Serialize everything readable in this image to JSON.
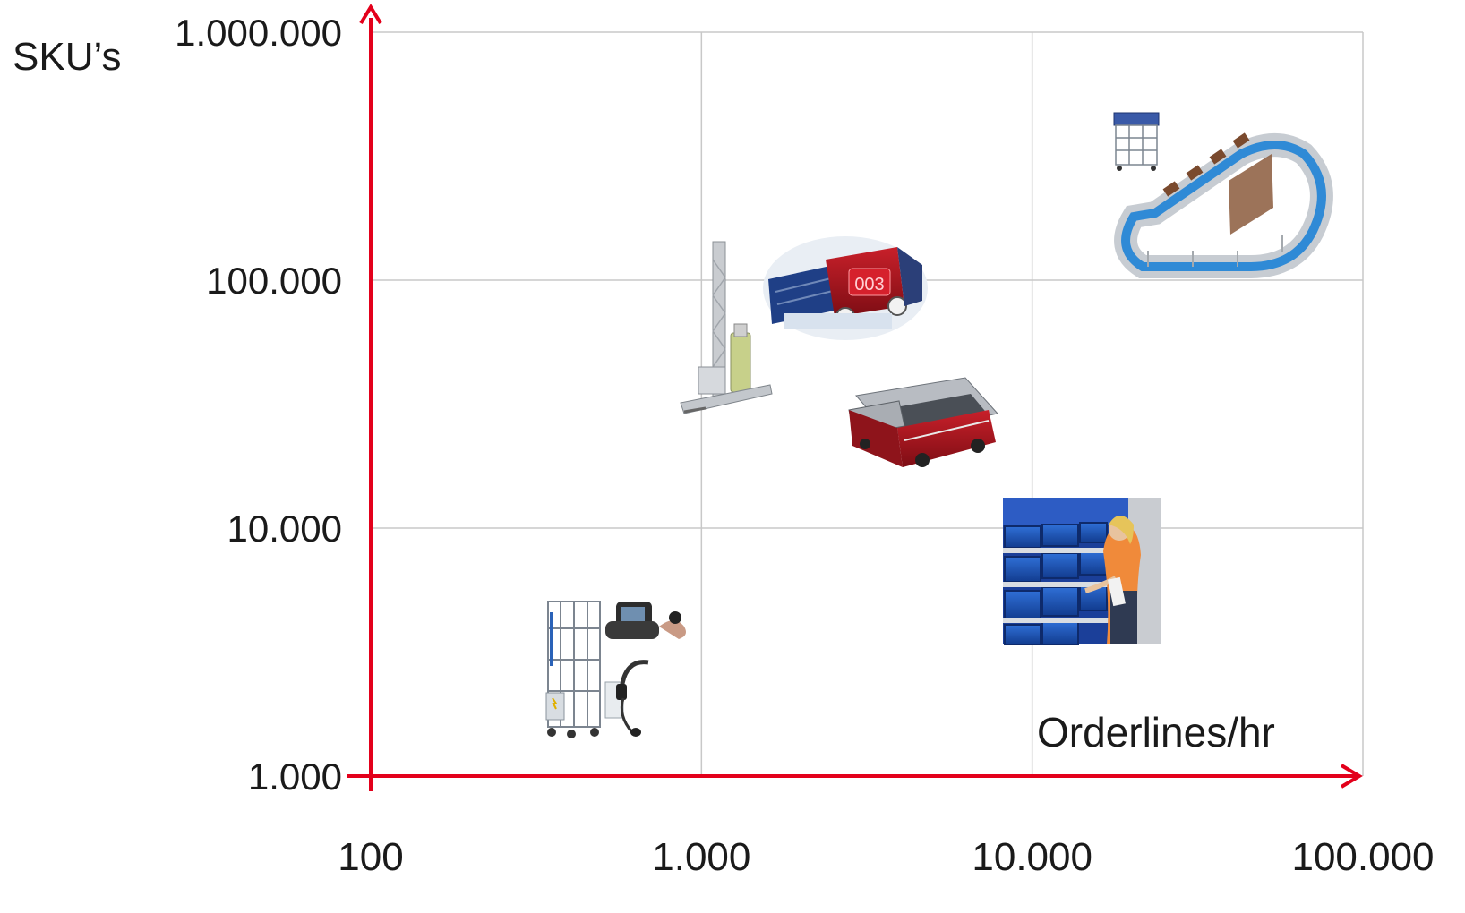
{
  "chart_data": {
    "type": "scatter",
    "title": "",
    "xlabel": "Orderlines/hr",
    "ylabel": "SKU’s",
    "x_scale": "log",
    "y_scale": "log",
    "xlim": [
      100,
      100000
    ],
    "ylim": [
      1000,
      1000000
    ],
    "x_ticks": [
      100,
      1000,
      10000,
      100000
    ],
    "x_tick_labels": [
      "100",
      "1.000",
      "10.000",
      "100.000"
    ],
    "y_ticks": [
      1000,
      10000,
      100000,
      1000000
    ],
    "y_tick_labels": [
      "1.000",
      "10.000",
      "100.000",
      "1.000.000"
    ],
    "grid": true,
    "axis_color": "#e3001b",
    "grid_color": "#c8c8c8",
    "points": [
      {
        "icon": "picking-cart-scanner-headset-image",
        "x": 450,
        "y": 3000
      },
      {
        "icon": "stacker-crane-image",
        "x": 1050,
        "y": 60000
      },
      {
        "icon": "shuttle-robot-display-image",
        "x": 2500,
        "y": 100000
      },
      {
        "icon": "shuttle-vehicle-image",
        "x": 3000,
        "y": 30000
      },
      {
        "icon": "operator-picking-bins-image",
        "x": 15000,
        "y": 5500
      },
      {
        "icon": "sorter-loop-conveyor-image",
        "x": 40000,
        "y": 250000
      }
    ]
  }
}
